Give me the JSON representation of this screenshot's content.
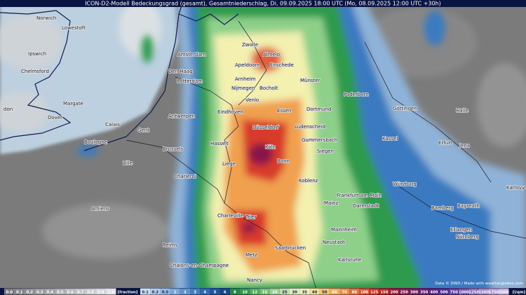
{
  "title": "ICON-D2-Modell Bedeckungsgrad (gesamt), Gesamtniederschlag, Di, 09.09.2025 18:00 UTC (Mo, 08.09.2025 12:00 UTC +30h)",
  "cities": [
    "Norwich",
    "Lowestoft",
    "Ipswich",
    "Chelmsford",
    "don",
    "Margate",
    "Dover",
    "Calais",
    "Boulogne",
    "Amsterdam",
    "Den Haag",
    "Rotterdam",
    "Zwolle",
    "Almelo",
    "Apeldoorn",
    "Enschede",
    "Arnheim",
    "Münster",
    "Nijmegen",
    "Bocholt",
    "Eindhoven",
    "Venlo",
    "Essen",
    "Dortmund",
    "Paderborn",
    "Göttingen",
    "Antwerpen",
    "Gent",
    "Düsseldorf",
    "Lüdenscheid",
    "Brussels",
    "Hasselt",
    "Köln",
    "Gummersbach",
    "Siegen",
    "Lille",
    "Liège",
    "Bonn",
    "Charleroi",
    "Koblenz",
    "Frankfurt am Main",
    "Mainz",
    "Darmstadt",
    "Trier",
    "Mannheim",
    "Neustadt",
    "Saarbrücken",
    "Karlsruhe",
    "Metz",
    "Nancy",
    "Charleville",
    "Reims",
    "Châlons-en-Champagne",
    "Kassel",
    "Erfurt",
    "Jena",
    "Halle",
    "Bamberg",
    "Bayreuth",
    "Erlangen",
    "Nürnberg",
    "Karlovy Vary",
    "Würzburg",
    "Amiens"
  ],
  "legend": {
    "cloud": {
      "labels": [
        "0.0",
        "0.1",
        "0.2",
        "0.3",
        "0.4",
        "0.5",
        "0.6",
        "0.7",
        "0.8",
        "0.9",
        "1.0"
      ],
      "unit": "[fraction]"
    },
    "precip": {
      "labels": [
        "0.1",
        "0.2",
        "0.5",
        "1",
        "2",
        "3",
        "4",
        "5",
        "6",
        "8",
        "10",
        "12",
        "15",
        "20",
        "25",
        "30",
        "35",
        "40",
        "50",
        "60",
        "70",
        "80",
        "100",
        "125",
        "150",
        "200",
        "250",
        "300",
        "350",
        "400",
        "500",
        "750",
        "1000",
        "1250",
        "1500",
        "1750",
        "2000"
      ],
      "unit": "[l/qm]"
    }
  },
  "credit": "Data © DWD / Made with weatherglobes.com"
}
